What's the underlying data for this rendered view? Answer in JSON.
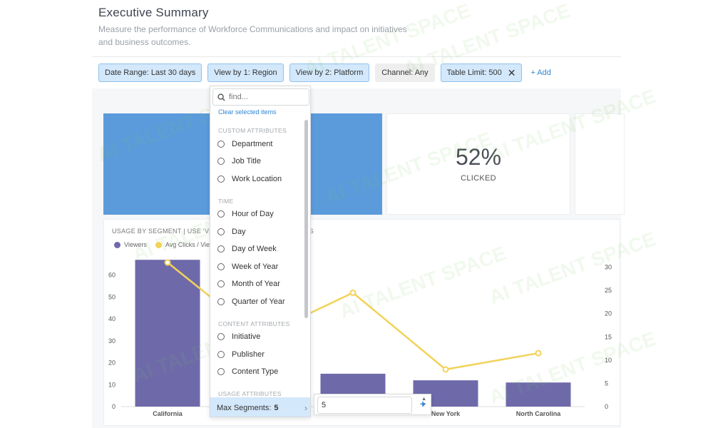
{
  "header": {
    "title": "Executive Summary",
    "subtitle": "Measure the performance of Workforce Communications and impact on initiatives and business outcomes."
  },
  "filters": {
    "date_range": "Date Range: Last 30 days",
    "view_by_1": "View by 1: Region",
    "view_by_2": "View by 2: Platform",
    "channel": "Channel: Any",
    "table_limit": "Table Limit: 500",
    "add_label": "+ Add"
  },
  "stat": {
    "value": "52%",
    "label": "CLICKED"
  },
  "chart_title": {
    "left": "USAGE BY SEGMENT | USE 'VIEW",
    "right": "TS"
  },
  "chart_data": {
    "type": "bar",
    "categories": [
      "California",
      "",
      "",
      "New York",
      "North Carolina"
    ],
    "category_labels_visible": [
      "California",
      "New York",
      "North Carolina"
    ],
    "series": [
      {
        "name": "Viewers",
        "kind": "bar",
        "axis": "left",
        "color": "#6e6aaa",
        "values": [
          67,
          23,
          15,
          12,
          11
        ]
      },
      {
        "name": "Avg Clicks / Viewe",
        "kind": "line",
        "axis": "right",
        "color": "#f2d258",
        "values": [
          31,
          15,
          24.5,
          8,
          11.5
        ]
      }
    ],
    "left_ticks": [
      0,
      10,
      20,
      30,
      40,
      50,
      60
    ],
    "right_ticks": [
      0,
      5,
      10,
      15,
      20,
      25,
      30
    ],
    "ylim_left": [
      0,
      70
    ],
    "ylim_right": [
      0,
      33
    ]
  },
  "dropdown": {
    "search_placeholder": "find...",
    "clear_label": "Clear selected items",
    "sections": [
      {
        "title": "CUSTOM ATTRIBUTES",
        "items": [
          "Department",
          "Job Title",
          "Work Location"
        ]
      },
      {
        "title": "TIME",
        "items": [
          "Hour of Day",
          "Day",
          "Day of Week",
          "Week of Year",
          "Month of Year",
          "Quarter of Year"
        ]
      },
      {
        "title": "CONTENT ATTRIBUTES",
        "items": [
          "Initiative",
          "Publisher",
          "Content Type"
        ]
      },
      {
        "title": "USAGE ATTRIBUTES",
        "items": []
      }
    ],
    "max_segments_label": "Max Segments:",
    "max_segments_value": "5"
  },
  "segment_input": {
    "value": "5",
    "plus": "+"
  },
  "watermark": "AI TALENT SPACE"
}
